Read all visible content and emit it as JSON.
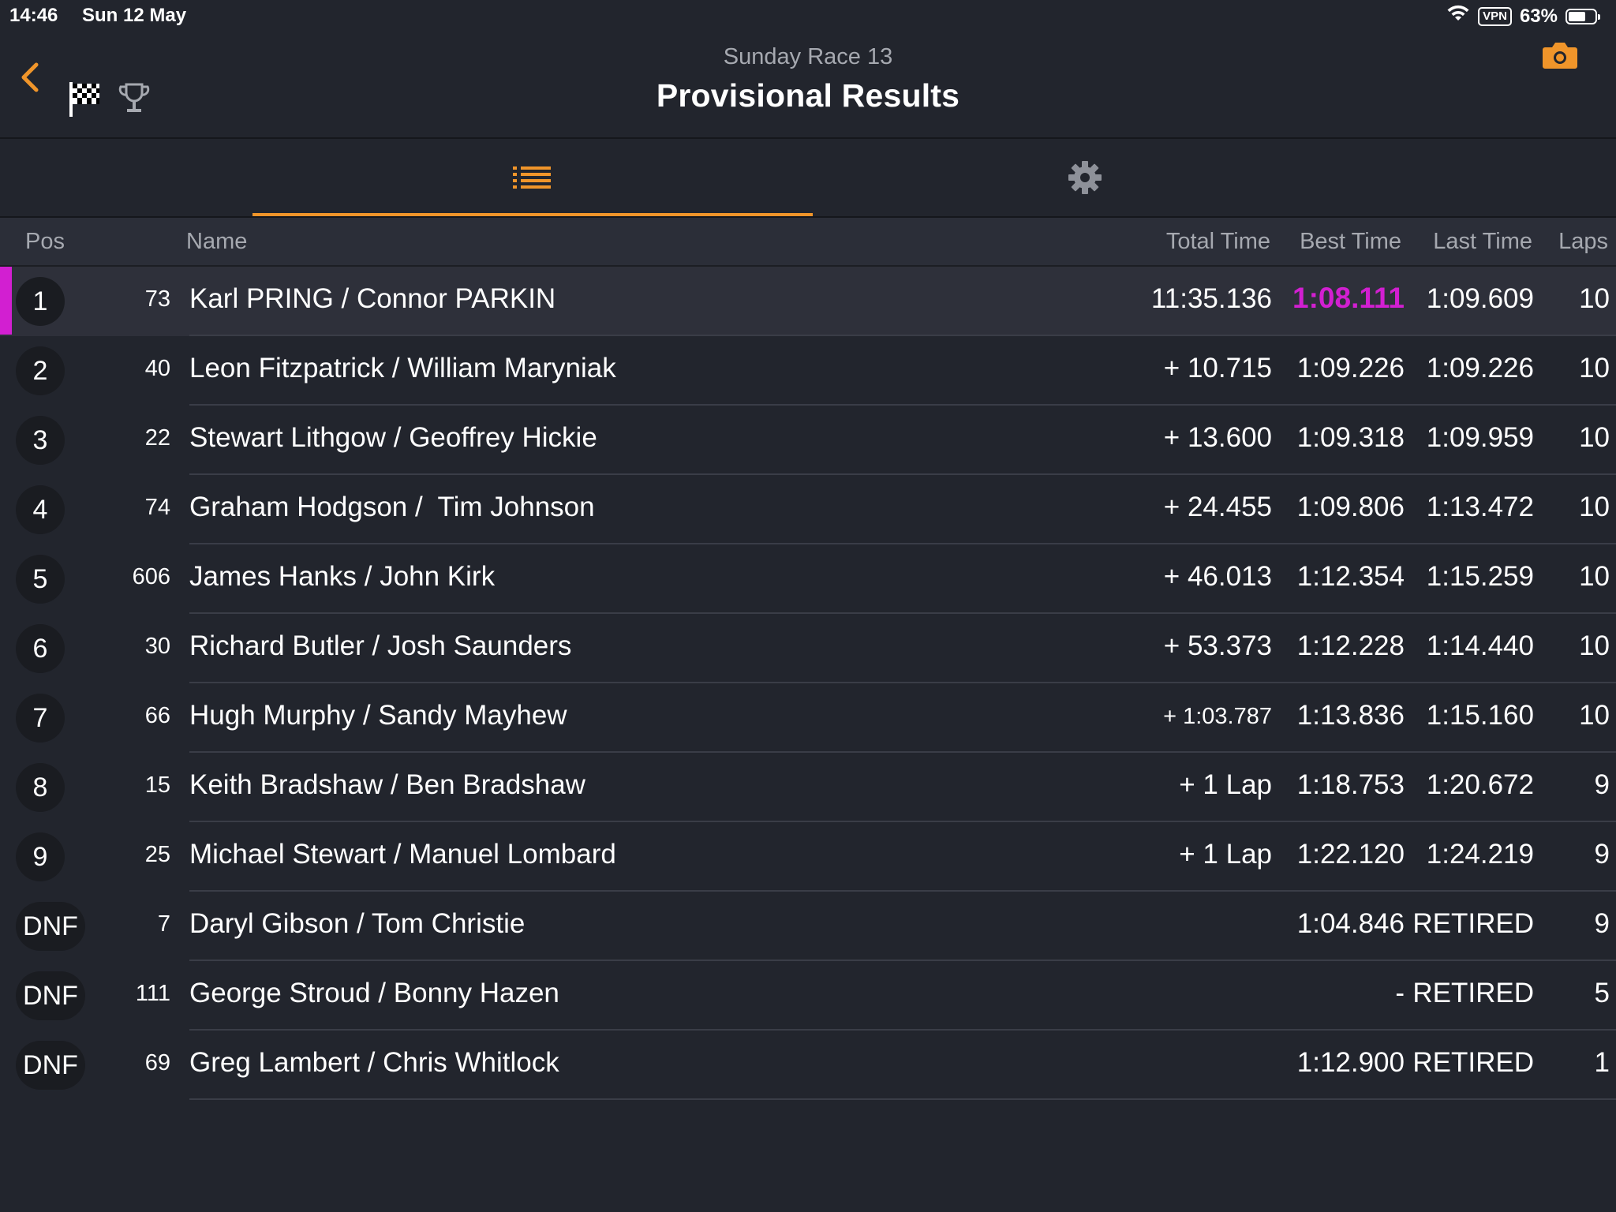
{
  "status_bar": {
    "time": "14:46",
    "date": "Sun 12 May",
    "vpn": "VPN",
    "battery": "63%"
  },
  "header": {
    "subtitle": "Sunday Race 13",
    "title": "Provisional Results"
  },
  "colors": {
    "accent": "#f0952a",
    "fastest": "#d21fd1",
    "background": "#22252d"
  },
  "icons": [
    "chevron-left-icon",
    "checkered-flag-icon",
    "trophy-icon",
    "camera-icon",
    "list-icon",
    "gear-icon",
    "wifi-icon",
    "battery-icon"
  ],
  "columns": {
    "pos": "Pos",
    "name": "Name",
    "total": "Total Time",
    "best": "Best Time",
    "last": "Last Time",
    "laps": "Laps"
  },
  "results": [
    {
      "pos": "1",
      "num": "73",
      "name": "Karl PRING / Connor PARKIN",
      "total": "11:35.136",
      "best": "1:08.111",
      "last": "1:09.609",
      "laps": "10"
    },
    {
      "pos": "2",
      "num": "40",
      "name": "Leon Fitzpatrick / William Maryniak",
      "total": "+ 10.715",
      "best": "1:09.226",
      "last": "1:09.226",
      "laps": "10"
    },
    {
      "pos": "3",
      "num": "22",
      "name": "Stewart Lithgow / Geoffrey Hickie",
      "total": "+ 13.600",
      "best": "1:09.318",
      "last": "1:09.959",
      "laps": "10"
    },
    {
      "pos": "4",
      "num": "74",
      "name": "Graham Hodgson /  Tim Johnson",
      "total": "+ 24.455",
      "best": "1:09.806",
      "last": "1:13.472",
      "laps": "10"
    },
    {
      "pos": "5",
      "num": "606",
      "name": "James Hanks / John Kirk",
      "total": "+ 46.013",
      "best": "1:12.354",
      "last": "1:15.259",
      "laps": "10"
    },
    {
      "pos": "6",
      "num": "30",
      "name": "Richard Butler / Josh Saunders",
      "total": "+ 53.373",
      "best": "1:12.228",
      "last": "1:14.440",
      "laps": "10"
    },
    {
      "pos": "7",
      "num": "66",
      "name": "Hugh Murphy / Sandy Mayhew",
      "total": "+ 1:03.787",
      "best": "1:13.836",
      "last": "1:15.160",
      "laps": "10"
    },
    {
      "pos": "8",
      "num": "15",
      "name": "Keith Bradshaw / Ben Bradshaw",
      "total": "+ 1 Lap",
      "best": "1:18.753",
      "last": "1:20.672",
      "laps": "9"
    },
    {
      "pos": "9",
      "num": "25",
      "name": "Michael Stewart / Manuel Lombard",
      "total": "+ 1 Lap",
      "best": "1:22.120",
      "last": "1:24.219",
      "laps": "9"
    },
    {
      "pos": "DNF",
      "num": "7",
      "name": "Daryl Gibson / Tom Christie",
      "total": "",
      "best": "1:04.846",
      "last": "RETIRED",
      "laps": "9"
    },
    {
      "pos": "DNF",
      "num": "111",
      "name": "George Stroud / Bonny Hazen",
      "total": "",
      "best": "-",
      "last": "RETIRED",
      "laps": "5"
    },
    {
      "pos": "DNF",
      "num": "69",
      "name": "Greg Lambert / Chris Whitlock",
      "total": "",
      "best": "1:12.900",
      "last": "RETIRED",
      "laps": "1"
    }
  ]
}
